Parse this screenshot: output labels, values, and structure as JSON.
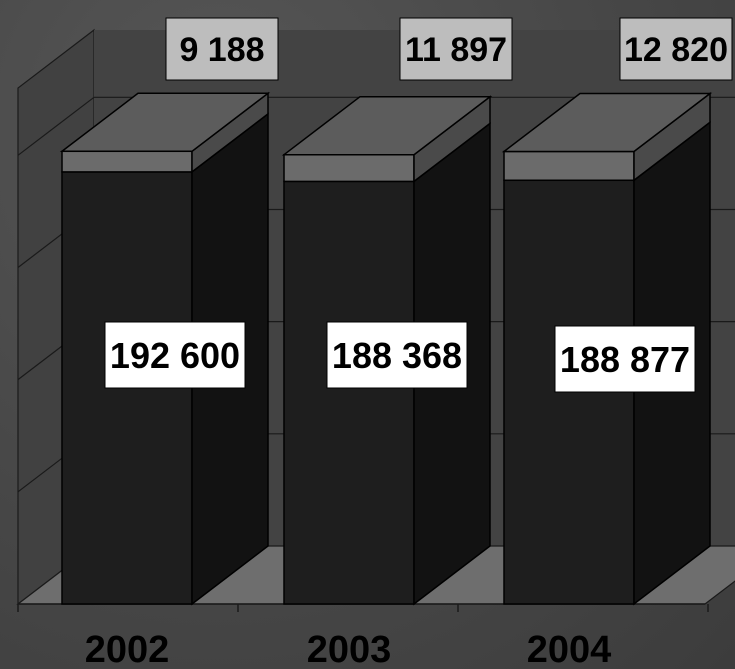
{
  "chart_data": {
    "type": "bar",
    "stacked": true,
    "three_d": true,
    "categories": [
      "2002",
      "2003",
      "2004"
    ],
    "series": [
      {
        "values": [
          192600,
          188368,
          188877
        ]
      },
      {
        "values": [
          9188,
          11897,
          12820
        ]
      }
    ],
    "value_labels": [
      [
        "192 600",
        "188 368",
        "188 877"
      ],
      [
        "9 188",
        "11 897",
        "12 820"
      ]
    ],
    "ylim": [
      0,
      230000
    ],
    "grid": true,
    "legend": "none",
    "colors": {
      "background": "#4a4a4a",
      "bar_front_main": "#1e1e1e",
      "bar_side_main": "#121212",
      "bar_front_top": "#6b6b6b",
      "bar_side_top": "#4a4a4a",
      "bar_top_face": "#5c5c5c",
      "wall": "#3c3c3c",
      "floor": "#6e6e6e",
      "grid": "#1a1a1a",
      "label_box": "#ffffff",
      "label_box_top": "#bdbdbd"
    }
  }
}
